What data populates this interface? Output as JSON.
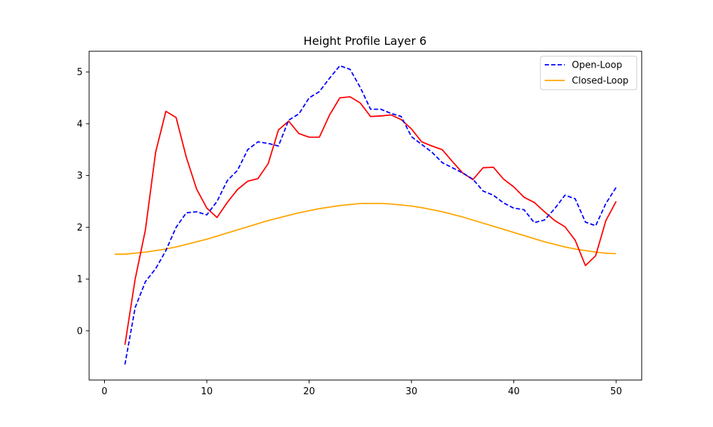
{
  "chart_data": {
    "type": "line",
    "title": "Height Profile Layer 6",
    "xlabel": "",
    "ylabel": "",
    "xlim": [
      -1.5,
      52.5
    ],
    "ylim": [
      -0.95,
      5.4
    ],
    "xticks": [
      0,
      10,
      20,
      30,
      40,
      50
    ],
    "yticks": [
      0,
      1,
      2,
      3,
      4,
      5
    ],
    "grid": false,
    "legend_position": "top-right",
    "series": [
      {
        "name": "Open-Loop",
        "color": "#0000ff",
        "style": "dashed",
        "in_legend": true,
        "x": [
          2,
          3,
          4,
          5,
          6,
          7,
          8,
          9,
          10,
          11,
          12,
          13,
          14,
          15,
          16,
          17,
          18,
          19,
          20,
          21,
          22,
          23,
          24,
          25,
          26,
          27,
          28,
          29,
          30,
          31,
          32,
          33,
          34,
          35,
          36,
          37,
          38,
          39,
          40,
          41,
          42,
          43,
          44,
          45,
          46,
          47,
          48,
          49,
          50
        ],
        "y": [
          -0.65,
          0.45,
          0.95,
          1.2,
          1.55,
          2.0,
          2.28,
          2.3,
          2.24,
          2.5,
          2.9,
          3.1,
          3.5,
          3.65,
          3.62,
          3.57,
          4.07,
          4.19,
          4.5,
          4.62,
          4.88,
          5.12,
          5.05,
          4.7,
          4.28,
          4.28,
          4.2,
          4.14,
          3.75,
          3.6,
          3.45,
          3.25,
          3.15,
          3.05,
          2.93,
          2.7,
          2.62,
          2.47,
          2.37,
          2.34,
          2.09,
          2.14,
          2.36,
          2.62,
          2.55,
          2.1,
          2.03,
          2.46,
          2.77
        ]
      },
      {
        "name": "Closed-Loop",
        "color": "#ffa500",
        "style": "solid",
        "in_legend": true,
        "x": [
          1,
          2,
          3,
          4,
          5,
          6,
          7,
          8,
          9,
          10,
          11,
          12,
          13,
          14,
          15,
          16,
          17,
          18,
          19,
          20,
          21,
          22,
          23,
          24,
          25,
          26,
          27,
          28,
          29,
          30,
          31,
          32,
          33,
          34,
          35,
          36,
          37,
          38,
          39,
          40,
          41,
          42,
          43,
          44,
          45,
          46,
          47,
          48,
          49,
          50
        ],
        "y": [
          1.48,
          1.48,
          1.5,
          1.52,
          1.55,
          1.58,
          1.62,
          1.67,
          1.72,
          1.77,
          1.83,
          1.89,
          1.95,
          2.01,
          2.07,
          2.13,
          2.18,
          2.23,
          2.28,
          2.32,
          2.36,
          2.39,
          2.42,
          2.44,
          2.46,
          2.46,
          2.46,
          2.45,
          2.43,
          2.41,
          2.38,
          2.34,
          2.3,
          2.25,
          2.2,
          2.14,
          2.08,
          2.02,
          1.96,
          1.9,
          1.84,
          1.78,
          1.72,
          1.67,
          1.62,
          1.58,
          1.55,
          1.52,
          1.5,
          1.49
        ]
      },
      {
        "name": "",
        "color": "#ff0000",
        "style": "solid",
        "in_legend": false,
        "x": [
          2,
          3,
          4,
          5,
          6,
          7,
          8,
          9,
          10,
          11,
          12,
          13,
          14,
          15,
          16,
          17,
          18,
          19,
          20,
          21,
          22,
          23,
          24,
          25,
          26,
          27,
          28,
          29,
          30,
          31,
          32,
          33,
          34,
          35,
          36,
          37,
          38,
          39,
          40,
          41,
          42,
          43,
          44,
          45,
          46,
          47,
          48,
          49,
          50
        ],
        "y": [
          -0.27,
          1.0,
          1.95,
          3.45,
          4.24,
          4.12,
          3.35,
          2.74,
          2.37,
          2.19,
          2.48,
          2.73,
          2.89,
          2.94,
          3.23,
          3.88,
          4.05,
          3.81,
          3.74,
          3.74,
          4.17,
          4.5,
          4.52,
          4.4,
          4.14,
          4.15,
          4.17,
          4.08,
          3.9,
          3.65,
          3.57,
          3.5,
          3.27,
          3.05,
          2.92,
          3.15,
          3.16,
          2.93,
          2.78,
          2.58,
          2.48,
          2.3,
          2.13,
          2.01,
          1.75,
          1.26,
          1.45,
          2.13,
          2.5
        ]
      }
    ]
  }
}
